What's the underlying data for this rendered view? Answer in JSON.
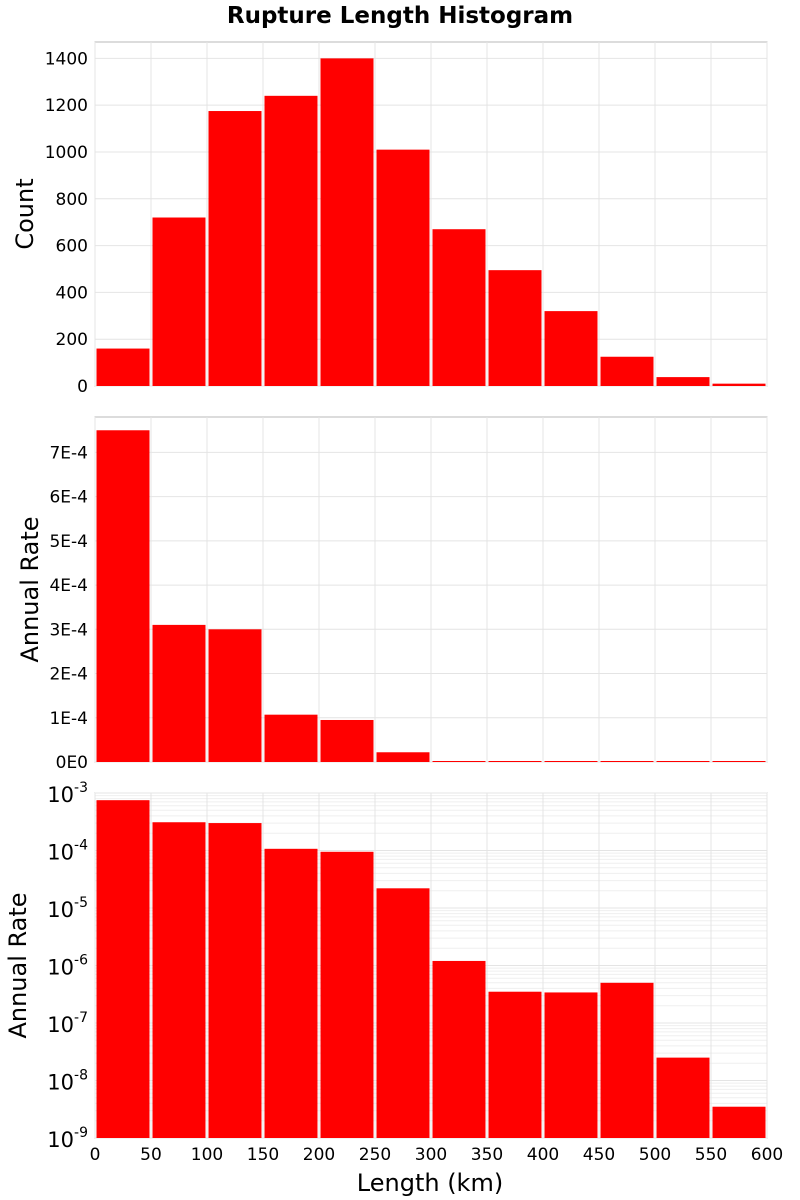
{
  "chart_data": {
    "title": "Rupture Length Histogram",
    "type": "bar",
    "bar_color": "#ff0000",
    "xlabel": "Length (km)",
    "xlim": [
      0,
      600
    ],
    "x_ticks": [
      "0",
      "50",
      "100",
      "150",
      "200",
      "250",
      "300",
      "350",
      "400",
      "450",
      "500",
      "550",
      "600"
    ],
    "bin_starts": [
      0,
      50,
      100,
      150,
      200,
      250,
      300,
      350,
      400,
      450,
      500,
      550
    ],
    "bin_width": 50,
    "grid": true,
    "panels": [
      {
        "ylabel": "Count",
        "scale": "linear",
        "ylim": [
          0,
          1470
        ],
        "y_ticks": [
          {
            "value": 0,
            "label": "0"
          },
          {
            "value": 200,
            "label": "200"
          },
          {
            "value": 400,
            "label": "400"
          },
          {
            "value": 600,
            "label": "600"
          },
          {
            "value": 800,
            "label": "800"
          },
          {
            "value": 1000,
            "label": "1000"
          },
          {
            "value": 1200,
            "label": "1200"
          },
          {
            "value": 1400,
            "label": "1400"
          }
        ],
        "values": [
          160,
          720,
          1175,
          1240,
          1400,
          1010,
          670,
          495,
          320,
          125,
          38,
          10
        ]
      },
      {
        "ylabel": "Annual Rate",
        "scale": "linear",
        "ylim": [
          0,
          0.00078
        ],
        "y_ticks": [
          {
            "value": 0,
            "label": "0E0"
          },
          {
            "value": 0.0001,
            "label": "1E-4"
          },
          {
            "value": 0.0002,
            "label": "2E-4"
          },
          {
            "value": 0.0003,
            "label": "3E-4"
          },
          {
            "value": 0.0004,
            "label": "4E-4"
          },
          {
            "value": 0.0005,
            "label": "5E-4"
          },
          {
            "value": 0.0006,
            "label": "6E-4"
          },
          {
            "value": 0.0007,
            "label": "7E-4"
          }
        ],
        "values": [
          0.00075,
          0.00031,
          0.0003,
          0.000107,
          9.5e-05,
          2.2e-05,
          1.2e-06,
          3.5e-07,
          3.4e-07,
          5e-07,
          2.5e-08,
          3.5e-09
        ]
      },
      {
        "ylabel": "Annual Rate",
        "scale": "log",
        "ylim": [
          1e-09,
          0.001
        ],
        "y_ticks": [
          {
            "value": 0.001,
            "base": "10",
            "exp": "-3"
          },
          {
            "value": 0.0001,
            "base": "10",
            "exp": "-4"
          },
          {
            "value": 1e-05,
            "base": "10",
            "exp": "-5"
          },
          {
            "value": 1e-06,
            "base": "10",
            "exp": "-6"
          },
          {
            "value": 1e-07,
            "base": "10",
            "exp": "-7"
          },
          {
            "value": 1e-08,
            "base": "10",
            "exp": "-8"
          },
          {
            "value": 1e-09,
            "base": "10",
            "exp": "-9"
          }
        ],
        "values": [
          0.00075,
          0.00031,
          0.0003,
          0.000107,
          9.5e-05,
          2.2e-05,
          1.2e-06,
          3.5e-07,
          3.4e-07,
          5e-07,
          2.5e-08,
          3.5e-09
        ]
      }
    ]
  }
}
